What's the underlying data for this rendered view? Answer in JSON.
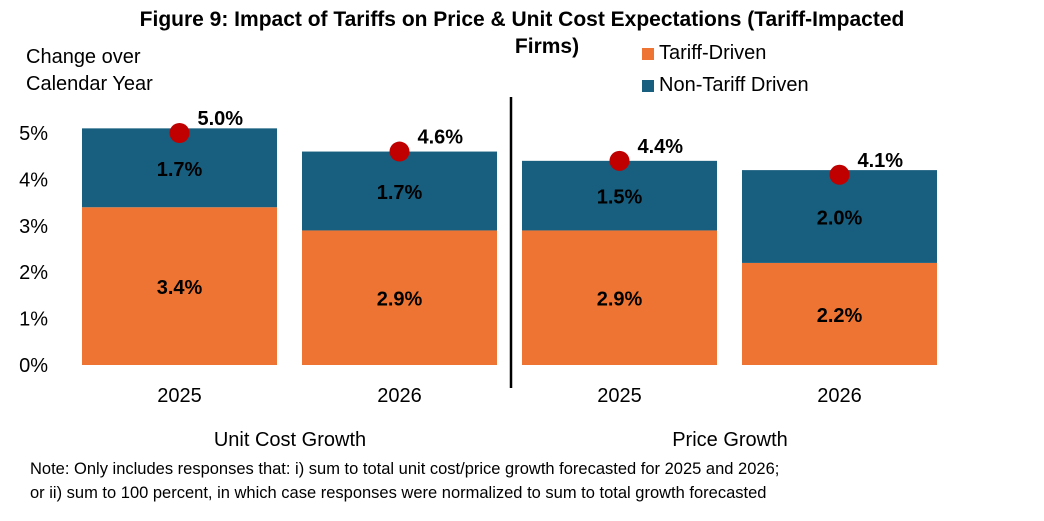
{
  "chart_data": {
    "type": "bar",
    "stacked": true,
    "title": "Figure 9: Impact of Tariffs on Price & Unit Cost Expectations (Tariff-Impacted Firms)",
    "ylabel": "Change over Calendar Year",
    "ylim": [
      0,
      5
    ],
    "yticks": [
      "0%",
      "1%",
      "2%",
      "3%",
      "4%",
      "5%"
    ],
    "groups": [
      "Unit Cost Growth",
      "Price Growth"
    ],
    "categories": [
      "2025",
      "2026",
      "2025",
      "2026"
    ],
    "series": [
      {
        "name": "Tariff-Driven",
        "color": "#ED7432",
        "values": [
          3.4,
          2.9,
          2.9,
          2.2
        ],
        "labels": [
          "3.4%",
          "2.9%",
          "2.9%",
          "2.2%"
        ]
      },
      {
        "name": "Non-Tariff Driven",
        "color": "#175E7F",
        "values": [
          1.7,
          1.7,
          1.5,
          2.0
        ],
        "labels": [
          "1.7%",
          "1.7%",
          "1.5%",
          "2.0%"
        ]
      }
    ],
    "totals": {
      "values": [
        5.0,
        4.6,
        4.4,
        4.1
      ],
      "labels": [
        "5.0%",
        "4.6%",
        "4.4%",
        "4.1%"
      ],
      "marker_color": "#C00000"
    },
    "grid": false,
    "legend_position": "top-right"
  },
  "title_line1": "Figure 9: Impact of Tariffs on Price & Unit Cost Expectations (Tariff-Impacted",
  "title_line2": "Firms)",
  "ylabel_line1": "Change over",
  "ylabel_line2": "Calendar Year",
  "note_line1": "Note: Only includes responses that: i) sum to total unit cost/price growth forecasted for 2025 and 2026;",
  "note_line2": "or ii) sum to 100 percent, in which case responses were normalized  to sum to total growth forecasted"
}
